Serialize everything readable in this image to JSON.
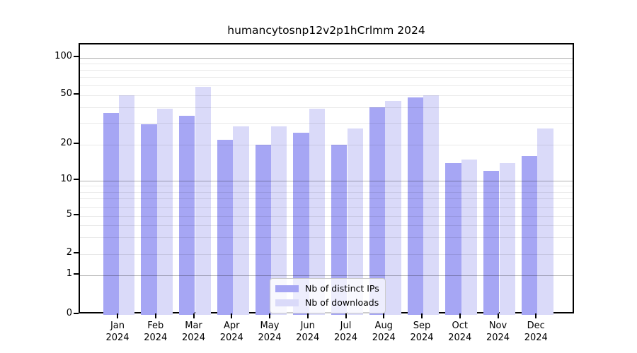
{
  "title": "humancytosnp12v2p1hCrlmm 2024",
  "chart_data": {
    "type": "bar",
    "title": "humancytosnp12v2p1hCrlmm 2024",
    "categories": [
      "Jan\n2024",
      "Feb\n2024",
      "Mar\n2024",
      "Apr\n2024",
      "May\n2024",
      "Jun\n2024",
      "Jul\n2024",
      "Aug\n2024",
      "Sep\n2024",
      "Oct\n2024",
      "Nov\n2024",
      "Dec\n2024"
    ],
    "series": [
      {
        "name": "Nb of distinct IPs",
        "color": "#a6a6f4",
        "values": [
          36,
          29,
          34,
          22,
          20,
          25,
          20,
          40,
          48,
          14,
          12,
          16
        ]
      },
      {
        "name": "Nb of downloads",
        "color": "#dadaf9",
        "values": [
          50,
          39,
          58,
          28,
          28,
          39,
          27,
          45,
          50,
          15,
          14,
          27
        ]
      }
    ],
    "xlabel": "",
    "ylabel": "",
    "yaxis": {
      "scale": "symlog",
      "ticks": [
        0,
        1,
        2,
        5,
        10,
        20,
        50,
        100
      ],
      "ylim": [
        0,
        130
      ]
    },
    "grid": {
      "orientation": "horizontal",
      "major_at": [
        1,
        10,
        100
      ],
      "minor_at": [
        2,
        3,
        4,
        5,
        6,
        7,
        8,
        9,
        20,
        30,
        40,
        50,
        60,
        70,
        80,
        90
      ]
    },
    "legend": {
      "position": "bottom-center",
      "entries": [
        "Nb of distinct IPs",
        "Nb of downloads"
      ]
    }
  }
}
